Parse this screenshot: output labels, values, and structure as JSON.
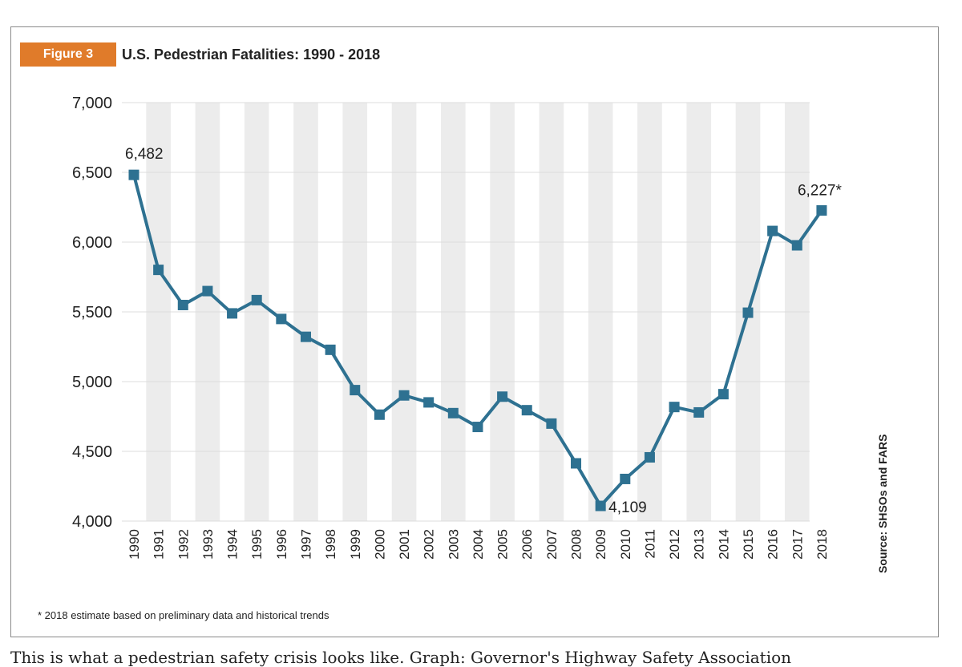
{
  "figure": {
    "badge": "Figure 3",
    "title": "U.S. Pedestrian Fatalities: 1990 - 2018",
    "footnote": "* 2018 estimate based on preliminary data and historical trends",
    "source": "Source: SHSOs and FARS"
  },
  "caption": "This is what a pedestrian safety crisis looks like. Graph: Governor's Highway Safety Association",
  "colors": {
    "accent": "#e07b2a",
    "line": "#2e7191",
    "stripe": "#ececec",
    "grid": "#dcdcdc"
  },
  "chart_data": {
    "type": "line",
    "title": "U.S. Pedestrian Fatalities: 1990 - 2018",
    "xlabel": "",
    "ylabel": "",
    "ylim": [
      4000,
      7000
    ],
    "yticks": [
      4000,
      4500,
      5000,
      5500,
      6000,
      6500,
      7000
    ],
    "ytick_labels": [
      "4,000",
      "4,500",
      "5,000",
      "5,500",
      "6,000",
      "6,500",
      "7,000"
    ],
    "categories": [
      "1990",
      "1991",
      "1992",
      "1993",
      "1994",
      "1995",
      "1996",
      "1997",
      "1998",
      "1999",
      "2000",
      "2001",
      "2002",
      "2003",
      "2004",
      "2005",
      "2006",
      "2007",
      "2008",
      "2009",
      "2010",
      "2011",
      "2012",
      "2013",
      "2014",
      "2015",
      "2016",
      "2017",
      "2018"
    ],
    "series": [
      {
        "name": "Pedestrian Fatalities",
        "values": [
          6482,
          5801,
          5549,
          5649,
          5489,
          5584,
          5449,
          5321,
          5228,
          4939,
          4763,
          4901,
          4851,
          4774,
          4675,
          4892,
          4795,
          4699,
          4414,
          4109,
          4302,
          4457,
          4818,
          4779,
          4910,
          5494,
          6080,
          5977,
          6227
        ]
      }
    ],
    "annotations": [
      {
        "index": 0,
        "label": "6,482",
        "position": "above"
      },
      {
        "index": 19,
        "label": "4,109",
        "position": "right"
      },
      {
        "index": 28,
        "label": "6,227*",
        "position": "above-left"
      }
    ],
    "grid": true
  }
}
